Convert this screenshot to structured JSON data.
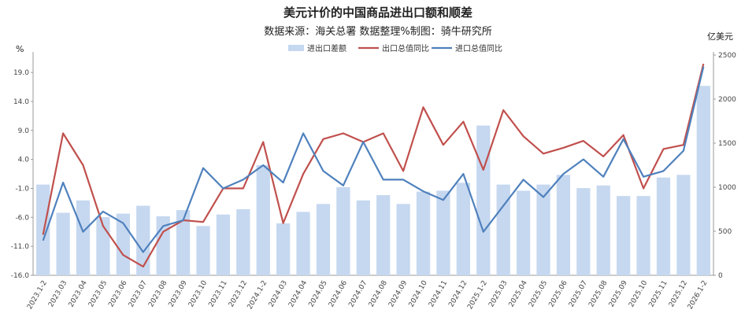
{
  "chart_data": {
    "type": "bar",
    "title": "美元计价的中国商品进出口额和顺差",
    "subtitle": "数据来源：海关总署    数据整理%制图：骑牛研究所",
    "y_left_unit": "%",
    "y_right_unit": "亿美元",
    "y_left_ticks": [
      "19.0",
      "14.0",
      "9.0",
      "4.0",
      "-1.0",
      "-6.0",
      "-11.0",
      "-16.0"
    ],
    "y_right_ticks": [
      "2500",
      "2000",
      "1500",
      "1000",
      "500",
      "0"
    ],
    "ylim_left": [
      -16,
      22
    ],
    "ylim_right": [
      0,
      2500
    ],
    "categories": [
      "2023.1-2",
      "2023.03",
      "2023.04",
      "2023.05",
      "2023.06",
      "2023.07",
      "2023.08",
      "2023.09",
      "2023.10",
      "2023.11",
      "2023.12",
      "2024.1-2",
      "2024.03",
      "2024.04",
      "2024.05",
      "2024.06",
      "2024.07",
      "2024.08",
      "2024.09",
      "2024.10",
      "2024.11",
      "2024.12",
      "2025.1-2",
      "2025.03",
      "2025.04",
      "2025.05",
      "2025.06",
      "2025.07",
      "2025.08",
      "2025.09",
      "2025.10",
      "2025.11",
      "2025.12",
      "2026.1-2"
    ],
    "series": [
      {
        "name": "进出口差额",
        "kind": "bar",
        "axis": "right",
        "color": "#c6d8f0",
        "values": [
          1030,
          710,
          850,
          660,
          700,
          790,
          670,
          740,
          560,
          690,
          750,
          1250,
          590,
          720,
          810,
          1000,
          850,
          910,
          810,
          950,
          960,
          1050,
          1700,
          1030,
          960,
          1030,
          1140,
          990,
          1020,
          900,
          900,
          1110,
          1140,
          2150
        ]
      },
      {
        "name": "出口总值同比",
        "kind": "line",
        "axis": "left",
        "color": "#c0504d",
        "values": [
          -9.0,
          8.5,
          3.0,
          -7.5,
          -12.5,
          -14.5,
          -8.5,
          -6.5,
          -6.8,
          -1.0,
          -1.0,
          7.0,
          -7.0,
          1.5,
          7.5,
          8.5,
          7.0,
          8.5,
          2.0,
          13.0,
          6.5,
          10.5,
          2.2,
          12.5,
          8.0,
          5.0,
          6.0,
          7.2,
          4.5,
          8.2,
          -1.0,
          5.8,
          6.5,
          20.5
        ]
      },
      {
        "name": "进口总值同比",
        "kind": "line",
        "axis": "left",
        "color": "#4f81bd",
        "values": [
          -10.0,
          0.0,
          -8.5,
          -5.0,
          -7.0,
          -12.0,
          -7.5,
          -6.5,
          2.5,
          -1.0,
          0.5,
          3.0,
          0.0,
          8.5,
          2.0,
          -0.5,
          7.0,
          0.5,
          0.5,
          -1.5,
          -3.0,
          1.5,
          -8.5,
          -4.0,
          0.5,
          -2.5,
          1.5,
          4.0,
          1.0,
          7.5,
          1.0,
          2.0,
          5.5,
          20.0
        ]
      }
    ],
    "grid": false,
    "legend_position": "top-center"
  }
}
